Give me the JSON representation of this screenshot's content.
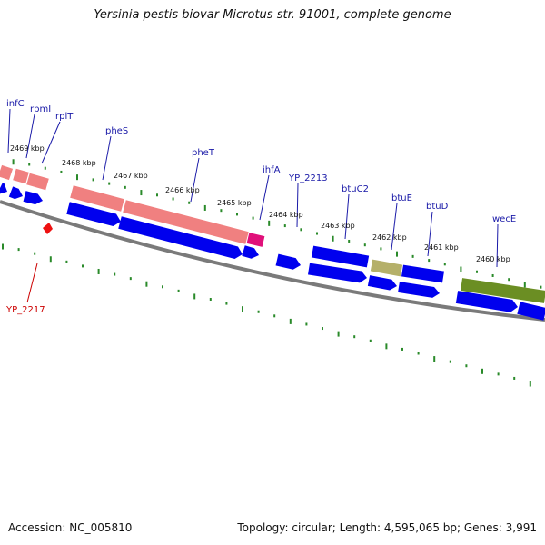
{
  "title": "Yersinia pestis biovar Microtus str. 91001, complete genome",
  "footer": {
    "accession": "Accession: NC_005810",
    "topology": "Topology: circular; Length: 4,595,065 bp; Genes: 3,991"
  },
  "colors": {
    "cds": "#0000ee",
    "trna": "#f08080",
    "rrna_like": "#e0107a",
    "misc": "#b5b06a",
    "other": "#6b8e23",
    "backbone": "#7a7a7a",
    "tick": "#2a8a2a",
    "label_blue": "#1a1aa8",
    "label_red": "#cc0000"
  },
  "gene_labels": [
    {
      "text": "infC"
    },
    {
      "text": "rpmI"
    },
    {
      "text": "rplT"
    },
    {
      "text": "pheS"
    },
    {
      "text": "pheT"
    },
    {
      "text": "ihfA"
    },
    {
      "text": "YP_2213"
    },
    {
      "text": "btuC2"
    },
    {
      "text": "btuE"
    },
    {
      "text": "btuD"
    },
    {
      "text": "wecE"
    },
    {
      "text": "YP_2217"
    }
  ],
  "kbp_labels": [
    {
      "text": "2469 kbp"
    },
    {
      "text": "2468 kbp"
    },
    {
      "text": "2467 kbp"
    },
    {
      "text": "2466 kbp"
    },
    {
      "text": "2465 kbp"
    },
    {
      "text": "2464 kbp"
    },
    {
      "text": "2463 kbp"
    },
    {
      "text": "2462 kbp"
    },
    {
      "text": "2461 kbp"
    },
    {
      "text": "2460 kbp"
    }
  ]
}
